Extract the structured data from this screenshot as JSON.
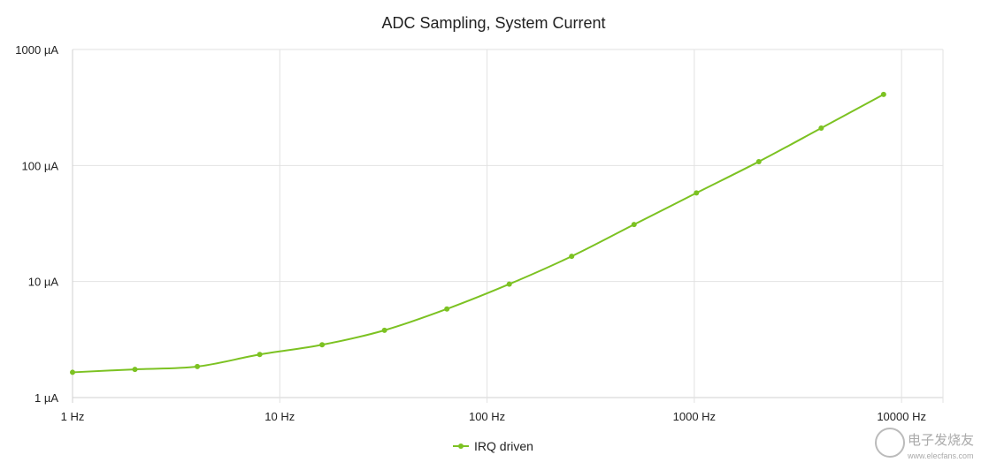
{
  "chart_data": {
    "type": "line",
    "title": "ADC Sampling, System Current",
    "x_scale": "log",
    "y_scale": "log",
    "xlim": [
      1,
      10000
    ],
    "ylim": [
      1,
      1000
    ],
    "x_ticks": [
      "1 Hz",
      "10 Hz",
      "100 Hz",
      "1000 Hz",
      "10000 Hz"
    ],
    "y_ticks": [
      "1 µA",
      "10 µA",
      "100 µA",
      "1000 µA"
    ],
    "grid": "vertical and horizontal",
    "legend_position": "bottom",
    "series": [
      {
        "name": "IRQ driven",
        "color": "#7cc222",
        "x": [
          1,
          2,
          4,
          8,
          16,
          32,
          64,
          128,
          256,
          512,
          1024,
          2048,
          4096,
          8192
        ],
        "y": [
          1.65,
          1.75,
          1.85,
          2.35,
          2.85,
          3.8,
          5.8,
          9.5,
          16.5,
          31,
          58,
          108,
          210,
          410
        ]
      }
    ]
  },
  "watermark": {
    "line1": "电子发烧友",
    "line2": "www.elecfans.com"
  }
}
